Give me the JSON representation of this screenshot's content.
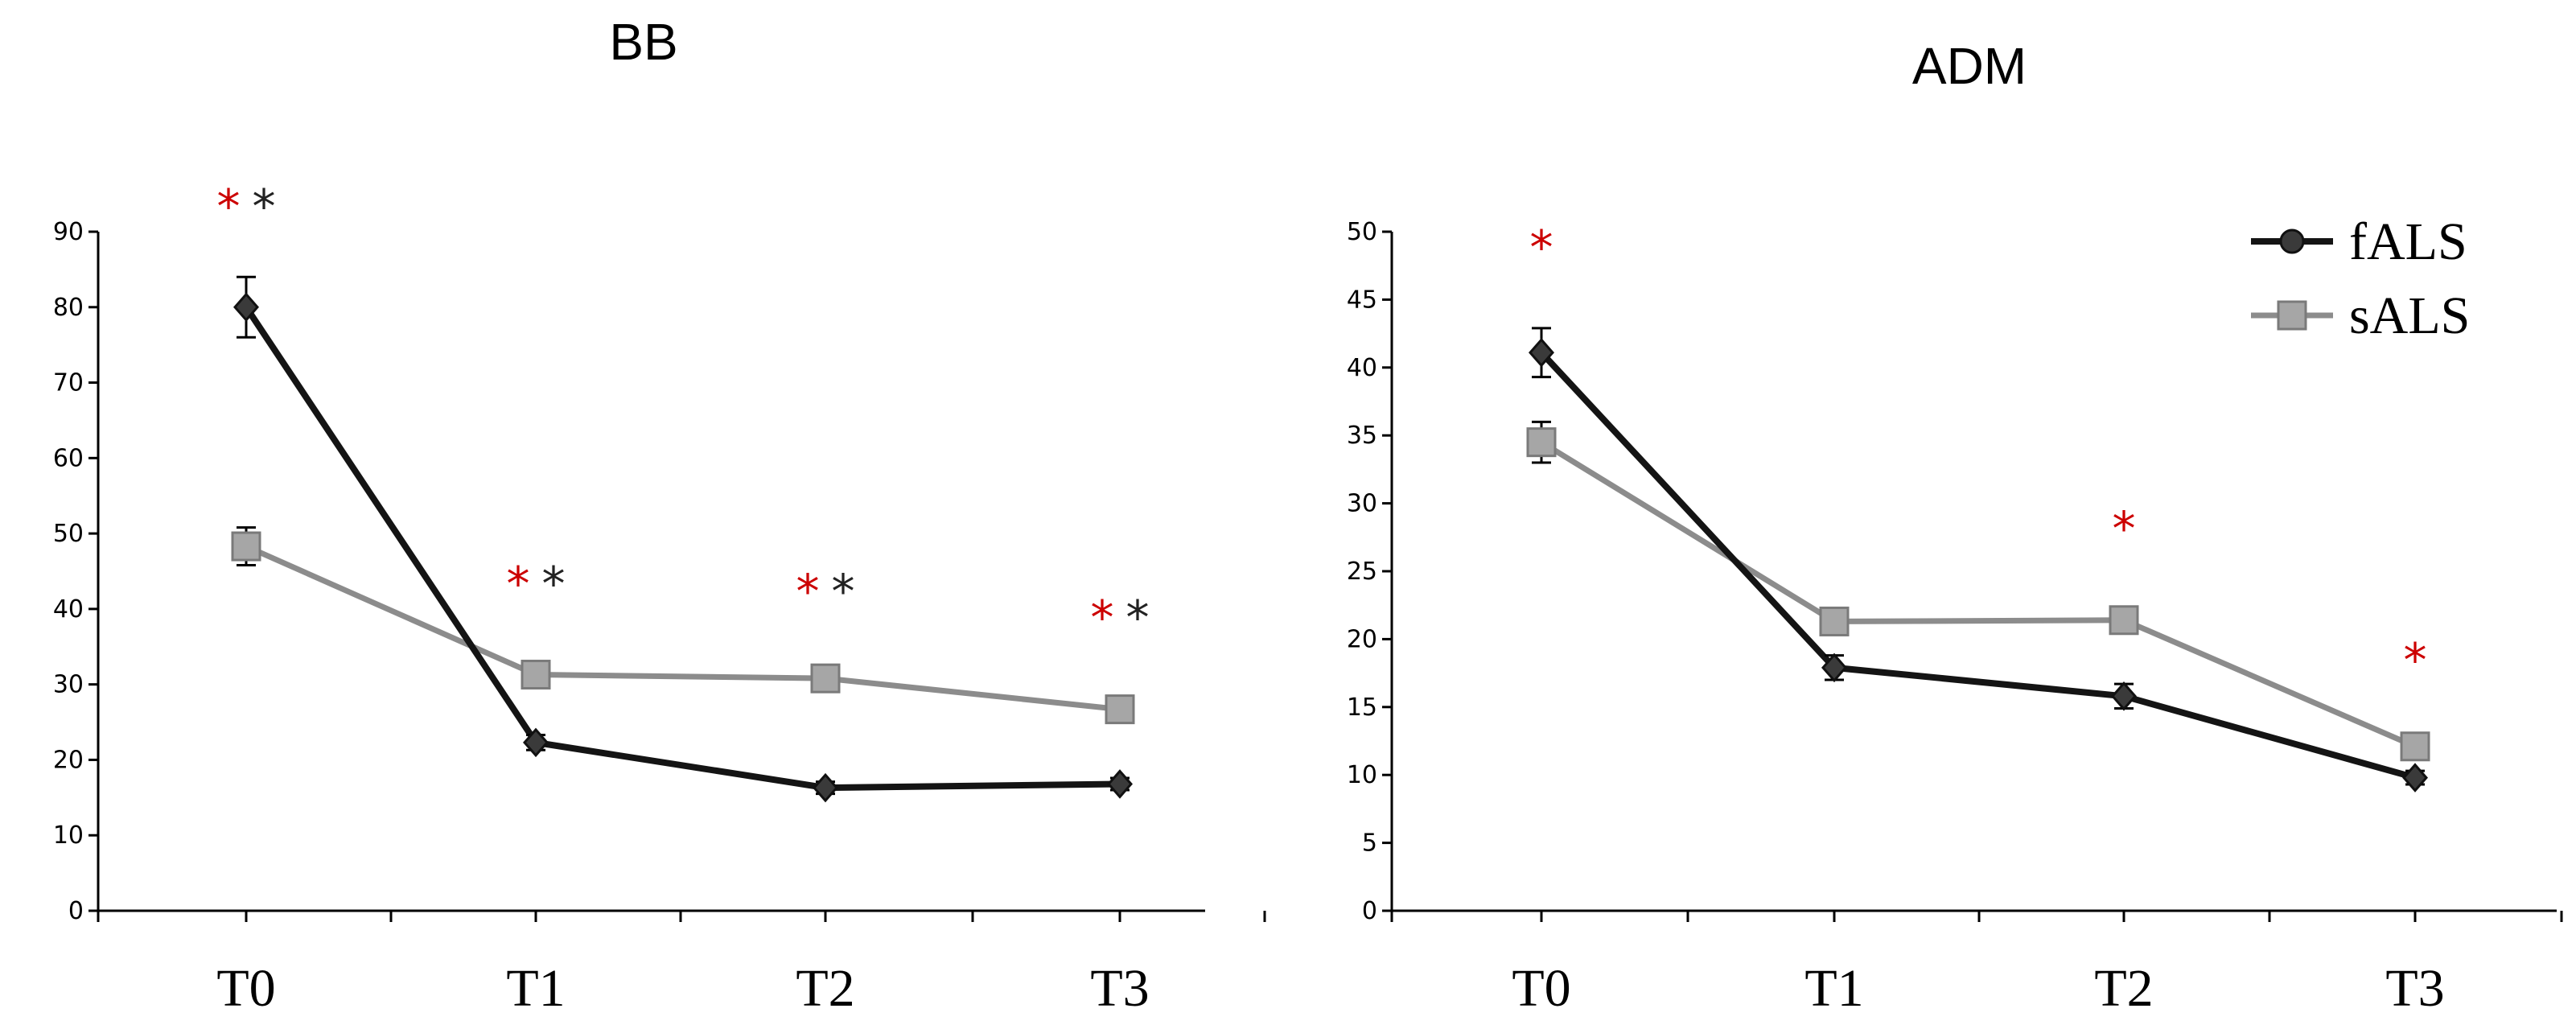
{
  "chart_data": [
    {
      "type": "line",
      "title": "BB",
      "categories": [
        "T0",
        "T1",
        "T2",
        "T3"
      ],
      "ylim": [
        0,
        90
      ],
      "yticks": [
        0,
        10,
        20,
        30,
        40,
        50,
        60,
        70,
        80,
        90
      ],
      "grid": false,
      "legend": false,
      "series": [
        {
          "name": "fALS",
          "values": [
            80,
            22.3,
            16.3,
            16.8
          ],
          "errors": [
            4,
            1,
            0.8,
            0.8
          ],
          "color": "#141414",
          "marker": "diamond"
        },
        {
          "name": "sALS",
          "values": [
            48.3,
            31.3,
            30.8,
            26.7
          ],
          "errors": [
            2.5,
            1.2,
            1,
            1
          ],
          "color": "#8c8c8c",
          "marker": "square"
        }
      ],
      "annotations": [
        {
          "category": "T0",
          "text": "**",
          "y": 94
        },
        {
          "category": "T1",
          "text": "**",
          "y": 44
        },
        {
          "category": "T2",
          "text": "**",
          "y": 43
        },
        {
          "category": "T3",
          "text": "**",
          "y": 39.5
        }
      ]
    },
    {
      "type": "line",
      "title": "ADM",
      "categories": [
        "T0",
        "T1",
        "T2",
        "T3"
      ],
      "ylim": [
        0,
        50
      ],
      "yticks": [
        0,
        5,
        10,
        15,
        20,
        25,
        30,
        35,
        40,
        45,
        50
      ],
      "grid": false,
      "legend": "top-right",
      "series": [
        {
          "name": "fALS",
          "values": [
            41.1,
            17.9,
            15.8,
            9.8
          ],
          "errors": [
            1.8,
            0.9,
            0.9,
            0.5
          ],
          "color": "#141414",
          "marker": "diamond"
        },
        {
          "name": "sALS",
          "values": [
            34.5,
            21.3,
            21.4,
            12.1
          ],
          "errors": [
            1.5,
            0.8,
            0.8,
            0.5
          ],
          "color": "#8c8c8c",
          "marker": "square"
        }
      ],
      "annotations": [
        {
          "category": "T0",
          "text": "*",
          "y": 49.2
        },
        {
          "category": "T2",
          "text": "*",
          "y": 28.5
        },
        {
          "category": "T3",
          "text": "*",
          "y": 18.8
        }
      ]
    }
  ],
  "colors": {
    "star_primary": "#cc0000",
    "star_secondary": "#222222",
    "axis": "#000000"
  }
}
